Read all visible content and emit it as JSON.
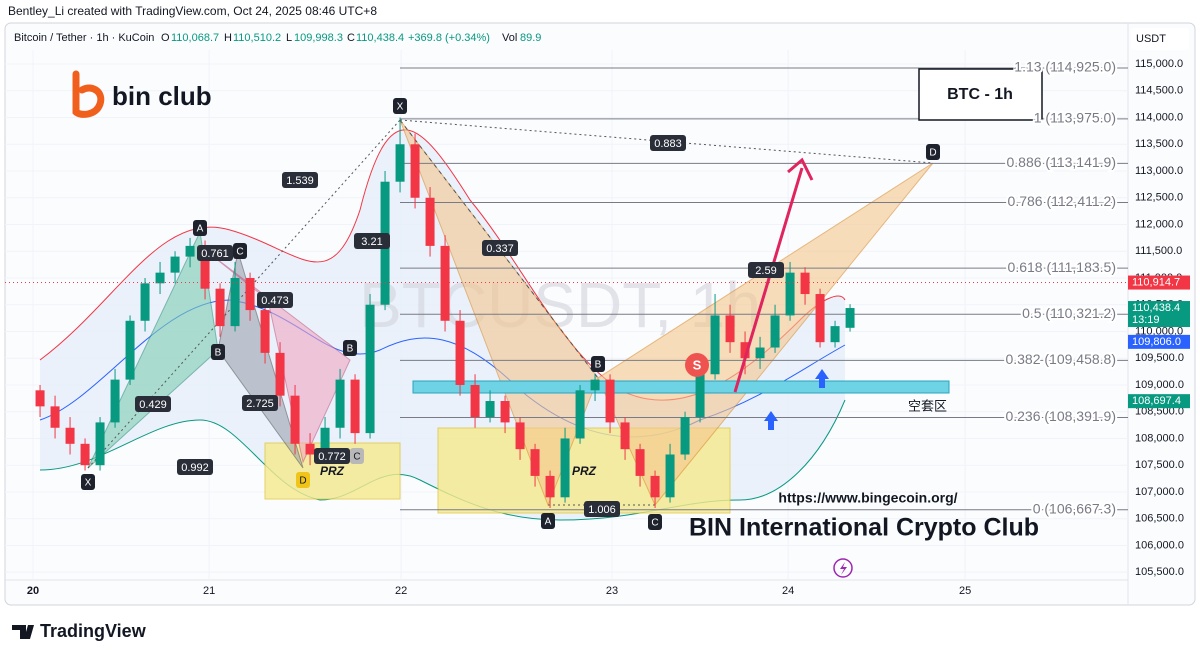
{
  "header": {
    "credit": "Bentley_Li created with TradingView.com, Oct 24, 2025 08:46 UTC+8"
  },
  "legend": {
    "symbol": "Bitcoin / Tether · 1h · KuCoin",
    "open_label": "O",
    "open": "110,068.7",
    "high_label": "H",
    "high": "110,510.2",
    "low_label": "L",
    "low": "109,998.3",
    "close_label": "C",
    "close": "110,438.4",
    "change": "+369.8 (+0.34%)",
    "volume_label": "Vol",
    "volume": "89.9"
  },
  "chart": {
    "currency": "USDT",
    "watermark": "BTCUSDT, 1h",
    "up_color": "#089981",
    "down_color": "#f23645",
    "ylim": [
      104980,
      115580
    ],
    "xlim": [
      -2.67,
      72.53
    ],
    "yticks": [
      {
        "value": 105500,
        "label": "105,500.0"
      },
      {
        "value": 106000,
        "label": "106,000.0"
      },
      {
        "value": 106500,
        "label": "106,500.0"
      },
      {
        "value": 107000,
        "label": "107,000.0"
      },
      {
        "value": 107500,
        "label": "107,500.0"
      },
      {
        "value": 108000,
        "label": "108,000.0"
      },
      {
        "value": 108500,
        "label": "108,500.0"
      },
      {
        "value": 109000,
        "label": "109,000.0"
      },
      {
        "value": 109500,
        "label": "109,500.0"
      },
      {
        "value": 110000,
        "label": "110,000.0"
      },
      {
        "value": 110500,
        "label": "110,500.0"
      },
      {
        "value": 111000,
        "label": "111,000.0"
      },
      {
        "value": 111500,
        "label": "111,500.0"
      },
      {
        "value": 112000,
        "label": "112,000.0"
      },
      {
        "value": 112500,
        "label": "112,500.0"
      },
      {
        "value": 113000,
        "label": "113,000.0"
      },
      {
        "value": 113500,
        "label": "113,500.0"
      },
      {
        "value": 114000,
        "label": "114,000.0"
      },
      {
        "value": 114500,
        "label": "114,500.0"
      },
      {
        "value": 115000,
        "label": "115,000.0"
      }
    ],
    "xticks": [
      {
        "value": -0.47,
        "label": "20"
      },
      {
        "value": 11.27,
        "label": "21"
      },
      {
        "value": 24.07,
        "label": "22"
      },
      {
        "value": 38.13,
        "label": "23"
      },
      {
        "value": 49.87,
        "label": "24"
      },
      {
        "value": 61.67,
        "label": "25"
      }
    ],
    "candles": [
      [
        108900,
        109000,
        108400,
        108600
      ],
      [
        108600,
        108800,
        108000,
        108200
      ],
      [
        108200,
        108400,
        107700,
        107900
      ],
      [
        107900,
        108000,
        107400,
        107500
      ],
      [
        107500,
        108400,
        107400,
        108300
      ],
      [
        108300,
        109300,
        108200,
        109100
      ],
      [
        109100,
        110300,
        109000,
        110200
      ],
      [
        110200,
        111000,
        110000,
        110900
      ],
      [
        110900,
        111300,
        110700,
        111100
      ],
      [
        111100,
        111500,
        110900,
        111400
      ],
      [
        111400,
        111750,
        111200,
        111600
      ],
      [
        111600,
        111700,
        110600,
        110800
      ],
      [
        110800,
        110900,
        109900,
        110100
      ],
      [
        110100,
        111300,
        110000,
        111000
      ],
      [
        111000,
        111100,
        110200,
        110400
      ],
      [
        110400,
        110500,
        109400,
        109600
      ],
      [
        109600,
        109800,
        108600,
        108800
      ],
      [
        108800,
        109000,
        107700,
        107900
      ],
      [
        107900,
        108100,
        107500,
        107700
      ],
      [
        107700,
        108400,
        107600,
        108200
      ],
      [
        108200,
        109300,
        108000,
        109100
      ],
      [
        109100,
        109200,
        107900,
        108100
      ],
      [
        108100,
        110700,
        108000,
        110500
      ],
      [
        110500,
        113000,
        110400,
        112800
      ],
      [
        112800,
        114000,
        112600,
        113500
      ],
      [
        113500,
        113700,
        112300,
        112500
      ],
      [
        112500,
        112700,
        111400,
        111600
      ],
      [
        111600,
        111800,
        110000,
        110200
      ],
      [
        110200,
        110400,
        108800,
        109000
      ],
      [
        109000,
        109200,
        108200,
        108400
      ],
      [
        108400,
        108900,
        108300,
        108700
      ],
      [
        108700,
        108800,
        108100,
        108300
      ],
      [
        108300,
        108400,
        107600,
        107800
      ],
      [
        107800,
        107900,
        107100,
        107300
      ],
      [
        107300,
        107400,
        106700,
        106900
      ],
      [
        106900,
        108200,
        106800,
        108000
      ],
      [
        108000,
        109000,
        107900,
        108900
      ],
      [
        108900,
        109200,
        108700,
        109100
      ],
      [
        109100,
        109200,
        108100,
        108300
      ],
      [
        108300,
        108400,
        107600,
        107800
      ],
      [
        107800,
        107900,
        107100,
        107300
      ],
      [
        107300,
        107400,
        106700,
        106900
      ],
      [
        106900,
        107900,
        106800,
        107700
      ],
      [
        107700,
        108500,
        107600,
        108400
      ],
      [
        108400,
        109300,
        108300,
        109200
      ],
      [
        109200,
        110700,
        109100,
        110300
      ],
      [
        110300,
        110500,
        109600,
        109800
      ],
      [
        109800,
        110000,
        109200,
        109500
      ],
      [
        109500,
        109900,
        109300,
        109700
      ],
      [
        109700,
        110500,
        109600,
        110300
      ],
      [
        110300,
        111300,
        110200,
        111100
      ],
      [
        111100,
        111200,
        110500,
        110700
      ],
      [
        110700,
        110800,
        109700,
        109800
      ],
      [
        109800,
        110200,
        109700,
        110100
      ],
      [
        110068.7,
        110510.2,
        109998.3,
        110438.4
      ]
    ],
    "fib_levels": [
      {
        "value": 114925,
        "label": "1.13 (114,925.0)"
      },
      {
        "value": 113975,
        "label": "1 (113,975.0)"
      },
      {
        "value": 113141.9,
        "label": "0.886 (113,141.9)"
      },
      {
        "value": 112411.2,
        "label": "0.786 (112,411.2)"
      },
      {
        "value": 111183.5,
        "label": "0.618 (111,183.5)"
      },
      {
        "value": 110321.2,
        "label": "0.5 (110,321.2)"
      },
      {
        "value": 109458.8,
        "label": "0.382 (109,458.8)"
      },
      {
        "value": 108391.9,
        "label": "0.236 (108,391.9)"
      },
      {
        "value": 106667.3,
        "label": "0 (106,667.3)"
      }
    ],
    "price_labels": [
      {
        "value": 110914.7,
        "label": "110,914.7",
        "color": "#f23645"
      },
      {
        "value": 110438.4,
        "label": "110,438.4",
        "sub": "13:19",
        "color": "#089981"
      },
      {
        "value": 109806,
        "label": "109,806.0",
        "color": "#2962ff"
      },
      {
        "value": 108697.4,
        "label": "108,697.4",
        "color": "#089981"
      }
    ],
    "pattern_labels": [
      "X",
      "A",
      "B",
      "C",
      "D",
      "B",
      "C",
      "X",
      "A",
      "B",
      "C",
      "D"
    ],
    "ratios": [
      "1.539",
      "0.761",
      "0.473",
      "0.429",
      "2.725",
      "0.992",
      "0.772",
      "3.21",
      "0.337",
      "0.883",
      "1.006",
      "2.59"
    ],
    "zones": {
      "prz_left": "PRZ",
      "prz_right": "PRZ",
      "short_zone": "空套区"
    },
    "signal": "S",
    "box_title": "BTC - 1h"
  },
  "branding": {
    "logo": "bin club",
    "url": "https://www.bingecoin.org/",
    "club": "BIN International Crypto Club",
    "footer": "TradingView"
  }
}
